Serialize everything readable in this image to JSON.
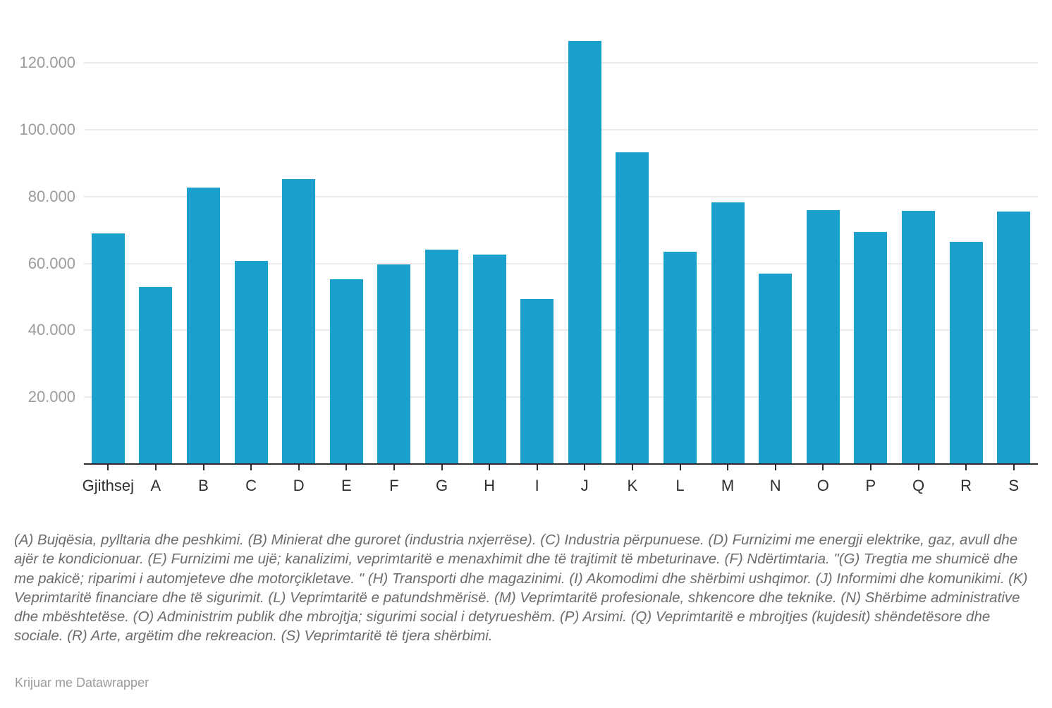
{
  "chart_data": {
    "type": "bar",
    "title": "",
    "xlabel": "",
    "ylabel": "",
    "categories": [
      "Gjithsej",
      "A",
      "B",
      "C",
      "D",
      "E",
      "F",
      "G",
      "H",
      "I",
      "J",
      "K",
      "L",
      "M",
      "N",
      "O",
      "P",
      "Q",
      "R",
      "S"
    ],
    "values": [
      69100,
      53000,
      82700,
      60800,
      85300,
      55300,
      59700,
      64200,
      62600,
      49400,
      126500,
      93300,
      63600,
      78300,
      57000,
      76000,
      69400,
      75700,
      66400,
      75600
    ],
    "ylim": [
      0,
      130000
    ],
    "yticks": [
      20000,
      40000,
      60000,
      80000,
      100000,
      120000
    ],
    "ytick_labels": [
      "20.000",
      "40.000",
      "60.000",
      "80.000",
      "100.000",
      "120.000"
    ],
    "grid": "horizontal",
    "legend": "none",
    "bar_color": "#1aa0cd"
  },
  "colors": {
    "bar": "#1aa0cd",
    "axis_line": "#2d2d2d",
    "gridline": "#ebebeb",
    "y_label": "#9c9c9c",
    "x_label": "#2f2f2f",
    "note_text": "#6c6c6c",
    "attribution_text": "#9b9b9b",
    "background": "#ffffff"
  },
  "footer": {
    "note": "(A) Bujqësia, pylltaria dhe peshkimi. (B) Minierat dhe guroret (industria nxjerrëse). (C) Industria përpunuese. (D) Furnizimi me energji elektrike, gaz, avull dhe ajër te kondicionuar. (E) Furnizimi me ujë; kanalizimi, veprimtaritë e menaxhimit dhe të trajtimit të mbeturinave. (F) Ndërtimtaria. \"(G) Tregtia me shumicë dhe me pakicë; riparimi i automjeteve dhe motorçikletave. \" (H) Transporti dhe magazinimi. (I) Akomodimi dhe shërbimi ushqimor. (J) Informimi dhe komunikimi. (K) Veprimtaritë financiare dhe të sigurimit. (L) Veprimtaritë e patundshmërisë. (M) Veprimtaritë profesionale, shkencore dhe teknike. (N) Shërbime administrative dhe mbështetëse. (O) Administrim publik dhe mbrojtja; sigurimi social i detyrueshëm. (P) Arsimi. (Q) Veprimtaritë e mbrojtjes (kujdesit) shëndetësore dhe sociale. (R) Arte, argëtim dhe rekreacion. (S) Veprimtaritë të tjera shërbimi.",
    "attribution": "Krijuar me Datawrapper"
  }
}
